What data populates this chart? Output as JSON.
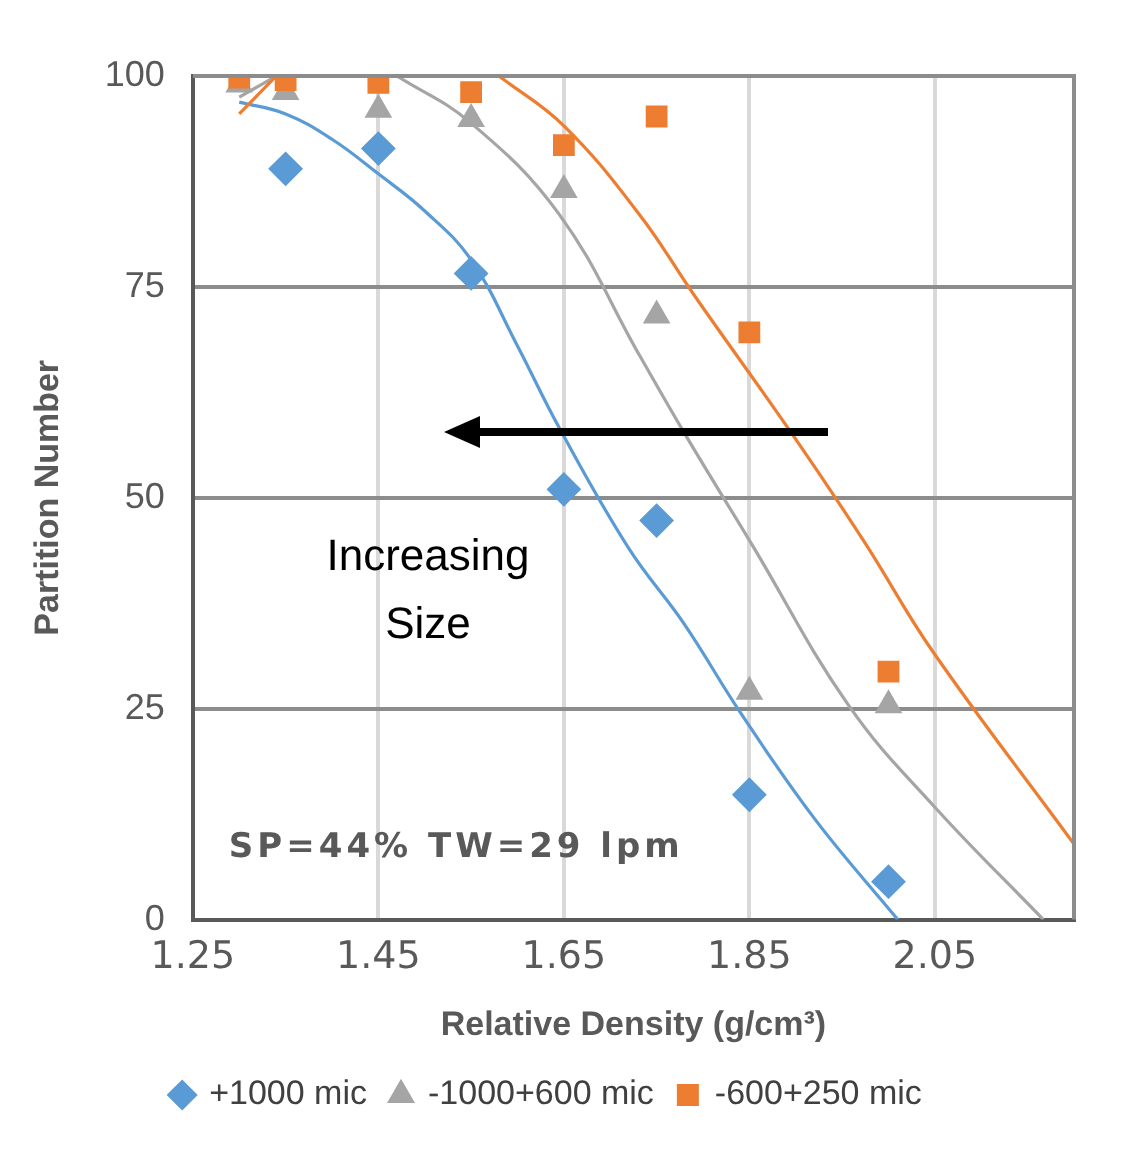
{
  "chart_data": {
    "type": "scatter",
    "xlabel": "Relative Density (g/cm³)",
    "ylabel": "Partition Number",
    "xlim": [
      1.25,
      2.2
    ],
    "xticks": [
      1.25,
      1.45,
      1.65,
      1.85,
      2.05
    ],
    "ylim": [
      0,
      100
    ],
    "yticks": [
      0,
      25,
      50,
      75,
      100
    ],
    "grid": true,
    "legend": "bottom",
    "annotations": [
      "Increasing Size",
      "SP=44% TW=29 lpm"
    ],
    "series": [
      {
        "name": "+1000 mic",
        "type": "scatter",
        "marker": "diamond",
        "color": "#5b9bd5",
        "x": [
          1.35,
          1.45,
          1.55,
          1.65,
          1.75,
          1.85,
          2.0
        ],
        "values": [
          89.0,
          91.4,
          76.6,
          51.0,
          47.3,
          14.8,
          4.5
        ]
      },
      {
        "name": "-1000+600 mic",
        "type": "scatter",
        "marker": "triangle",
        "color": "#a5a5a5",
        "x": [
          1.3,
          1.35,
          1.45,
          1.55,
          1.65,
          1.75,
          1.85,
          2.0
        ],
        "values": [
          99,
          98.1,
          96.0,
          94.9,
          86.5,
          71.6,
          27.0,
          25.4
        ]
      },
      {
        "name": "-600+250 mic",
        "type": "scatter",
        "marker": "square",
        "color": "#ed7d31",
        "x": [
          1.3,
          1.35,
          1.45,
          1.55,
          1.65,
          1.75,
          1.85,
          2.0
        ],
        "values": [
          99.8,
          99.5,
          99.2,
          98.1,
          91.8,
          95.2,
          69.6,
          29.4
        ]
      },
      {
        "type": "line",
        "marker": "none",
        "color": "#5b9bd5",
        "x": [
          1.3,
          1.35,
          1.4,
          1.45,
          1.5,
          1.55,
          1.6,
          1.645,
          1.72,
          1.78,
          1.84,
          1.92,
          2.01
        ],
        "values": [
          96.9,
          95.5,
          92.5,
          88.4,
          84,
          78.2,
          68,
          58.3,
          44,
          35,
          24.6,
          12,
          0
        ]
      },
      {
        "type": "line",
        "marker": "none",
        "color": "#a5a5a5",
        "x": [
          1.3,
          1.34,
          1.4,
          1.47,
          1.549,
          1.645,
          1.732,
          1.783,
          1.852,
          1.957,
          2.051,
          2.167
        ],
        "values": [
          97.5,
          100,
          null,
          100,
          94.5,
          83.6,
          66.8,
          57.1,
          44.6,
          25.4,
          13.2,
          0
        ]
      },
      {
        "type": "line",
        "marker": "none",
        "color": "#ed7d31",
        "x": [
          1.3,
          1.34,
          1.45,
          1.58,
          1.65,
          1.732,
          1.79,
          1.899,
          1.975,
          2.047,
          2.199
        ],
        "values": [
          95.5,
          100,
          null,
          100,
          94.1,
          83.5,
          74.1,
          57.1,
          44.6,
          31.9,
          9.1
        ]
      }
    ]
  }
}
